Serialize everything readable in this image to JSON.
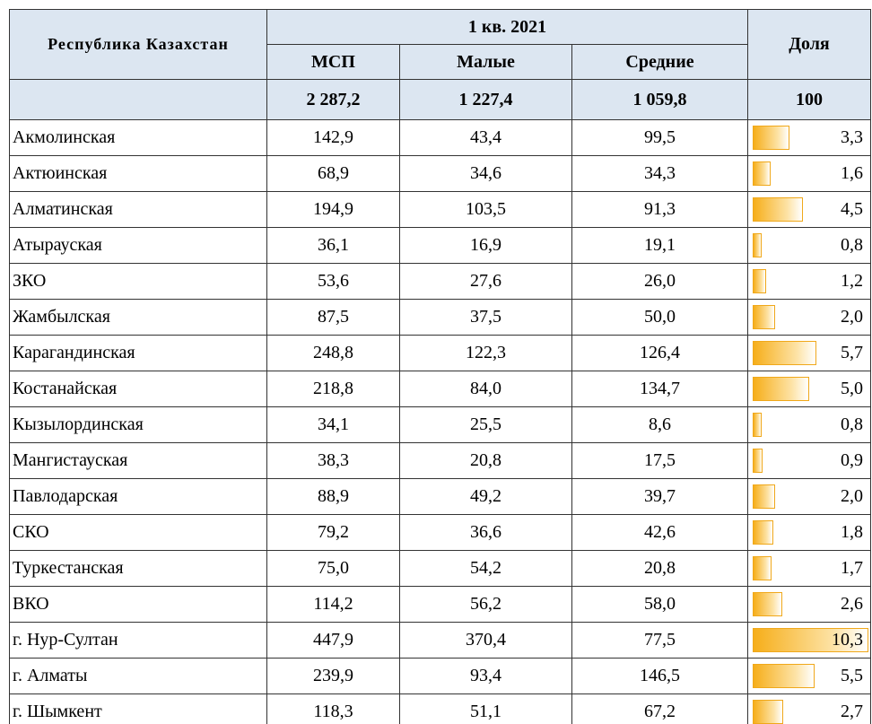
{
  "header": {
    "region_title": "Республика Казахстан",
    "period": "1 кв. 2021",
    "share_title": "Доля",
    "columns": [
      "МСП",
      "Малые",
      "Средние"
    ],
    "totals": [
      "2 287,2",
      "1 227,4",
      "1 059,8"
    ],
    "share_total": "100"
  },
  "table": {
    "rows": [
      {
        "region": "Акмолинская",
        "cells": [
          "142,9",
          "43,4",
          "99,5"
        ],
        "share": 3.3,
        "share_label": "3,3"
      },
      {
        "region": "Актюинская",
        "cells": [
          "68,9",
          "34,6",
          "34,3"
        ],
        "share": 1.6,
        "share_label": "1,6"
      },
      {
        "region": "Алматинская",
        "cells": [
          "194,9",
          "103,5",
          "91,3"
        ],
        "share": 4.5,
        "share_label": "4,5"
      },
      {
        "region": "Атырауская",
        "cells": [
          "36,1",
          "16,9",
          "19,1"
        ],
        "share": 0.8,
        "share_label": "0,8"
      },
      {
        "region": "ЗКО",
        "cells": [
          "53,6",
          "27,6",
          "26,0"
        ],
        "share": 1.2,
        "share_label": "1,2"
      },
      {
        "region": "Жамбылская",
        "cells": [
          "87,5",
          "37,5",
          "50,0"
        ],
        "share": 2.0,
        "share_label": "2,0"
      },
      {
        "region": "Карагандинская",
        "cells": [
          "248,8",
          "122,3",
          "126,4"
        ],
        "share": 5.7,
        "share_label": "5,7"
      },
      {
        "region": "Костанайская",
        "cells": [
          "218,8",
          "84,0",
          "134,7"
        ],
        "share": 5.0,
        "share_label": "5,0"
      },
      {
        "region": "Кызылординская",
        "cells": [
          "34,1",
          "25,5",
          "8,6"
        ],
        "share": 0.8,
        "share_label": "0,8"
      },
      {
        "region": "Мангистауская",
        "cells": [
          "38,3",
          "20,8",
          "17,5"
        ],
        "share": 0.9,
        "share_label": "0,9"
      },
      {
        "region": "Павлодарская",
        "cells": [
          "88,9",
          "49,2",
          "39,7"
        ],
        "share": 2.0,
        "share_label": "2,0"
      },
      {
        "region": "СКО",
        "cells": [
          "79,2",
          "36,6",
          "42,6"
        ],
        "share": 1.8,
        "share_label": "1,8"
      },
      {
        "region": "Туркестанская",
        "cells": [
          "75,0",
          "54,2",
          "20,8"
        ],
        "share": 1.7,
        "share_label": "1,7"
      },
      {
        "region": "ВКО",
        "cells": [
          "114,2",
          "56,2",
          "58,0"
        ],
        "share": 2.6,
        "share_label": "2,6"
      },
      {
        "region": "г. Нур-Султан",
        "cells": [
          "447,9",
          "370,4",
          "77,5"
        ],
        "share": 10.3,
        "share_label": "10,3"
      },
      {
        "region": "г. Алматы",
        "cells": [
          "239,9",
          "93,4",
          "146,5"
        ],
        "share": 5.5,
        "share_label": "5,5"
      },
      {
        "region": "г. Шымкент",
        "cells": [
          "118,3",
          "51,1",
          "67,2"
        ],
        "share": 2.7,
        "share_label": "2,7"
      }
    ]
  }
}
